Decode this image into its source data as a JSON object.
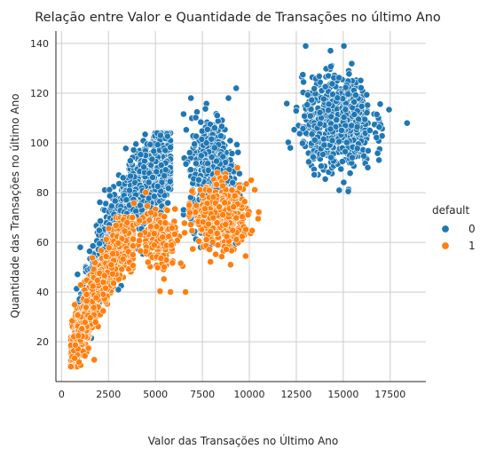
{
  "chart_data": {
    "type": "scatter",
    "title": "Relação entre Valor e Quantidade de Transações no último Ano",
    "xlabel": "Valor das Transações no Último Ano",
    "ylabel": "Quantidade das Transações no último Ano",
    "xlim": [
      -300,
      19400
    ],
    "ylim": [
      4,
      145
    ],
    "xticks": [
      0,
      2500,
      5000,
      7500,
      10000,
      12500,
      15000,
      17500
    ],
    "xtick_labels": [
      "0",
      "2500",
      "5000",
      "7500",
      "10000",
      "12500",
      "15000",
      "17500"
    ],
    "yticks": [
      20,
      40,
      60,
      80,
      100,
      120,
      140
    ],
    "ytick_labels": [
      "20",
      "40",
      "60",
      "80",
      "100",
      "120",
      "140"
    ],
    "grid": true,
    "legend": {
      "title": "default",
      "placement": "right",
      "entries": [
        {
          "label": "0",
          "color": "#1f77b4"
        },
        {
          "label": "1",
          "color": "#ff7f0e"
        }
      ]
    },
    "series": [
      {
        "name": "0",
        "color": "#1f77b4",
        "clusters": [
          {
            "x": [
              800,
              5800
            ],
            "y": [
              20,
              104
            ],
            "trend": [
              [
                900,
                25
              ],
              [
                2200,
                55
              ],
              [
                3500,
                75
              ],
              [
                4500,
                85
              ],
              [
                5600,
                92
              ]
            ],
            "spread_y": 14,
            "count": 1300
          },
          {
            "x": [
              6500,
              9500
            ],
            "y": [
              58,
              118
            ],
            "center": [
              8000,
              88
            ],
            "spread": [
              700,
              14
            ],
            "count": 600
          },
          {
            "x": [
              11800,
              18400
            ],
            "y": [
              80,
              139
            ],
            "center": [
              14700,
              108
            ],
            "spread": [
              1150,
              11
            ],
            "count": 800
          }
        ],
        "notable_points": [
          [
            9300,
            122
          ],
          [
            13000,
            139
          ],
          [
            18400,
            108
          ],
          [
            1000,
            58
          ]
        ]
      },
      {
        "name": "1",
        "color": "#ff7f0e",
        "clusters": [
          {
            "x": [
              500,
              3800
            ],
            "y": [
              10,
              70
            ],
            "trend": [
              [
                600,
                15
              ],
              [
                1500,
                35
              ],
              [
                2500,
                50
              ],
              [
                3500,
                62
              ]
            ],
            "spread_y": 9,
            "count": 1000
          },
          {
            "x": [
              3800,
              7000
            ],
            "y": [
              40,
              85
            ],
            "center": [
              5200,
              62
            ],
            "spread": [
              800,
              8
            ],
            "count": 160
          },
          {
            "x": [
              6800,
              10500
            ],
            "y": [
              45,
              90
            ],
            "center": [
              8500,
              70
            ],
            "spread": [
              900,
              8
            ],
            "count": 420
          }
        ],
        "notable_points": [
          [
            5800,
            40
          ],
          [
            6600,
            40
          ],
          [
            10100,
            85
          ],
          [
            9000,
            51
          ]
        ]
      }
    ]
  }
}
